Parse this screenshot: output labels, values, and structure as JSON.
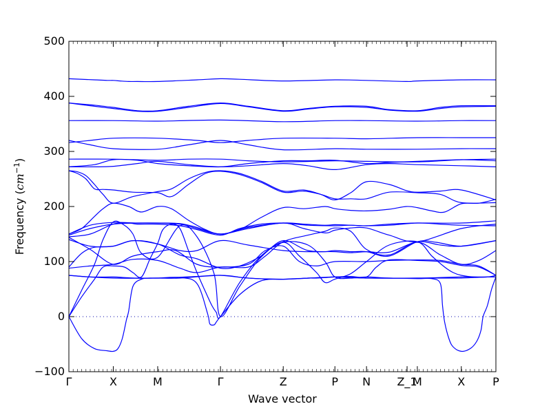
{
  "chart_data": {
    "type": "line",
    "title": "",
    "xlabel": "Wave vector",
    "ylabel_main": "Frequency (",
    "ylabel_math": "cm",
    "ylabel_sup": "−1",
    "ylabel_close": ")",
    "ylim": [
      -100,
      500
    ],
    "yticks": [
      -100,
      0,
      100,
      200,
      300,
      400,
      500
    ],
    "ytick_labels": [
      "−100",
      "0",
      "100",
      "200",
      "300",
      "400",
      "500"
    ],
    "xlim": [
      0,
      1
    ],
    "kpoints": [
      {
        "label": "Γ",
        "x": 0.0
      },
      {
        "label": "X",
        "x": 0.104
      },
      {
        "label": "M",
        "x": 0.208
      },
      {
        "label": "Γ",
        "x": 0.355
      },
      {
        "label": "Z",
        "x": 0.502
      },
      {
        "label": "P",
        "x": 0.623
      },
      {
        "label": "N",
        "x": 0.697
      },
      {
        "label": "Z_1",
        "x": 0.792
      },
      {
        "label": "M",
        "x": 0.816
      },
      {
        "label": "X",
        "x": 0.919
      },
      {
        "label": "P",
        "x": 1.0
      }
    ],
    "zero_line": {
      "y": 0,
      "style": "dotted"
    },
    "line_color": "#0000ff",
    "grid": false,
    "series": [
      {
        "x": [
          0,
          0.06,
          0.09,
          0.104,
          0.12,
          0.14,
          0.16,
          0.208,
          0.3,
          0.355,
          0.4,
          0.502,
          0.623,
          0.697,
          0.792,
          0.816,
          0.919,
          1.0
        ],
        "y": [
          432,
          430,
          429,
          429,
          428,
          427,
          427,
          427,
          430,
          432,
          431,
          428,
          430,
          429,
          427,
          428,
          430,
          430
        ]
      },
      {
        "x": [
          0,
          0.06,
          0.104,
          0.16,
          0.208,
          0.28,
          0.355,
          0.42,
          0.502,
          0.56,
          0.623,
          0.697,
          0.75,
          0.816,
          0.87,
          0.919,
          1.0
        ],
        "y": [
          388,
          384,
          380,
          374,
          374,
          382,
          388,
          382,
          374,
          378,
          382,
          382,
          376,
          374,
          380,
          383,
          383
        ]
      },
      {
        "x": [
          0,
          0.06,
          0.104,
          0.16,
          0.208,
          0.28,
          0.355,
          0.42,
          0.502,
          0.56,
          0.623,
          0.697,
          0.75,
          0.816,
          0.87,
          0.919,
          1.0
        ],
        "y": [
          388,
          382,
          378,
          373,
          373,
          380,
          387,
          381,
          373,
          377,
          381,
          380,
          375,
          373,
          378,
          381,
          382
        ]
      },
      {
        "x": [
          0,
          0.104,
          0.208,
          0.355,
          0.502,
          0.623,
          0.697,
          0.816,
          0.919,
          1.0
        ],
        "y": [
          356,
          356,
          355,
          357,
          354,
          356,
          356,
          355,
          356,
          356
        ]
      },
      {
        "x": [
          0,
          0.05,
          0.104,
          0.208,
          0.3,
          0.355,
          0.42,
          0.502,
          0.623,
          0.697,
          0.816,
          0.919,
          1.0
        ],
        "y": [
          316,
          320,
          324,
          324,
          320,
          316,
          320,
          324,
          324,
          323,
          325,
          325,
          325
        ]
      },
      {
        "x": [
          0,
          0.05,
          0.104,
          0.208,
          0.28,
          0.355,
          0.42,
          0.502,
          0.623,
          0.697,
          0.816,
          0.919,
          1.0
        ],
        "y": [
          320,
          312,
          305,
          304,
          312,
          320,
          312,
          303,
          305,
          304,
          304,
          305,
          305
        ]
      },
      {
        "x": [
          0,
          0.104,
          0.208,
          0.28,
          0.355,
          0.42,
          0.502,
          0.623,
          0.697,
          0.816,
          0.919,
          1.0
        ],
        "y": [
          286,
          286,
          284,
          286,
          286,
          283,
          281,
          283,
          282,
          281,
          285,
          286
        ]
      },
      {
        "x": [
          0,
          0.06,
          0.104,
          0.16,
          0.208,
          0.28,
          0.355,
          0.42,
          0.502,
          0.56,
          0.623,
          0.697,
          0.75,
          0.816,
          0.919,
          1.0
        ],
        "y": [
          272,
          276,
          285,
          284,
          278,
          274,
          272,
          278,
          283,
          283,
          284,
          278,
          280,
          282,
          285,
          283
        ]
      },
      {
        "x": [
          0,
          0.06,
          0.104,
          0.16,
          0.208,
          0.28,
          0.355,
          0.42,
          0.502,
          0.56,
          0.623,
          0.697,
          0.75,
          0.816,
          0.919,
          1.0
        ],
        "y": [
          272,
          272,
          273,
          278,
          282,
          276,
          272,
          274,
          278,
          274,
          267,
          276,
          278,
          276,
          274,
          272
        ]
      },
      {
        "x": [
          0,
          0.02,
          0.04,
          0.06,
          0.08,
          0.104,
          0.15,
          0.208,
          0.24,
          0.28,
          0.32,
          0.355,
          0.4,
          0.45,
          0.502,
          0.55,
          0.59,
          0.623,
          0.66,
          0.697,
          0.75,
          0.79,
          0.816,
          0.87,
          0.919,
          1.0
        ],
        "y": [
          265,
          263,
          256,
          240,
          222,
          206,
          218,
          227,
          232,
          250,
          262,
          265,
          260,
          246,
          228,
          230,
          222,
          212,
          225,
          245,
          240,
          229,
          226,
          228,
          230,
          212
        ]
      },
      {
        "x": [
          0,
          0.02,
          0.04,
          0.06,
          0.08,
          0.104,
          0.15,
          0.208,
          0.24,
          0.28,
          0.32,
          0.355,
          0.4,
          0.45,
          0.502,
          0.55,
          0.59,
          0.623,
          0.66,
          0.697,
          0.75,
          0.816,
          0.87,
          0.919,
          1.0
        ],
        "y": [
          265,
          260,
          250,
          232,
          231,
          230,
          226,
          225,
          218,
          240,
          260,
          264,
          258,
          244,
          226,
          228,
          222,
          214,
          214,
          214,
          226,
          225,
          222,
          207,
          207
        ]
      },
      {
        "x": [
          0,
          0.03,
          0.06,
          0.08,
          0.104,
          0.14,
          0.17,
          0.208,
          0.24,
          0.28,
          0.32,
          0.355,
          0.4,
          0.45,
          0.502,
          0.55,
          0.6,
          0.623,
          0.66,
          0.697,
          0.75,
          0.79,
          0.816,
          0.85,
          0.88,
          0.919,
          0.96,
          1.0
        ],
        "y": [
          150,
          160,
          182,
          196,
          206,
          200,
          190,
          200,
          196,
          175,
          158,
          150,
          158,
          180,
          198,
          196,
          200,
          196,
          193,
          192,
          195,
          200,
          198,
          192,
          190,
          205,
          206,
          213
        ]
      },
      {
        "x": [
          0,
          0.05,
          0.104,
          0.16,
          0.208,
          0.26,
          0.3,
          0.355,
          0.42,
          0.502,
          0.55,
          0.6,
          0.623,
          0.66,
          0.697,
          0.75,
          0.816,
          0.919,
          1.0
        ],
        "y": [
          148,
          160,
          168,
          170,
          170,
          168,
          160,
          150,
          160,
          170,
          160,
          152,
          157,
          161,
          161,
          148,
          136,
          160,
          168
        ]
      },
      {
        "x": [
          0,
          0.05,
          0.104,
          0.16,
          0.208,
          0.26,
          0.3,
          0.355,
          0.42,
          0.502,
          0.55,
          0.6,
          0.623,
          0.66,
          0.697,
          0.75,
          0.816,
          0.919,
          1.0
        ],
        "y": [
          150,
          166,
          171,
          170,
          170,
          169,
          162,
          150,
          162,
          170,
          168,
          166,
          167,
          166,
          165,
          168,
          170,
          170,
          174
        ]
      },
      {
        "x": [
          0,
          0.05,
          0.104,
          0.14,
          0.16,
          0.208,
          0.26,
          0.3,
          0.355,
          0.4,
          0.45,
          0.502,
          0.56,
          0.623,
          0.66,
          0.697,
          0.75,
          0.816,
          0.87,
          0.919,
          1.0
        ],
        "y": [
          145,
          150,
          168,
          170,
          168,
          168,
          165,
          158,
          148,
          160,
          168,
          170,
          166,
          165,
          166,
          165,
          166,
          170,
          168,
          166,
          165
        ]
      },
      {
        "x": [
          0,
          0.05,
          0.104,
          0.15,
          0.208,
          0.26,
          0.3,
          0.355,
          0.4,
          0.45,
          0.502,
          0.56,
          0.623,
          0.66,
          0.697,
          0.75,
          0.816,
          0.87,
          0.919,
          1.0
        ],
        "y": [
          140,
          128,
          128,
          138,
          132,
          112,
          105,
          88,
          92,
          110,
          138,
          120,
          118,
          116,
          118,
          117,
          136,
          130,
          128,
          138
        ]
      },
      {
        "x": [
          0,
          0.03,
          0.06,
          0.104,
          0.15,
          0.208,
          0.26,
          0.3,
          0.355,
          0.42,
          0.502,
          0.56,
          0.6,
          0.623,
          0.66,
          0.697,
          0.75,
          0.816,
          0.86,
          0.919,
          1.0
        ],
        "y": [
          90,
          115,
          126,
          128,
          138,
          132,
          120,
          120,
          138,
          130,
          120,
          118,
          118,
          120,
          118,
          118,
          110,
          136,
          135,
          128,
          138
        ]
      },
      {
        "x": [
          0,
          0.05,
          0.104,
          0.15,
          0.208,
          0.26,
          0.3,
          0.355,
          0.42,
          0.46,
          0.502,
          0.56,
          0.6,
          0.623,
          0.66,
          0.697,
          0.75,
          0.816,
          0.87,
          0.919,
          0.96,
          1.0
        ],
        "y": [
          88,
          92,
          95,
          104,
          102,
          88,
          80,
          90,
          90,
          110,
          136,
          148,
          155,
          161,
          155,
          122,
          112,
          135,
          112,
          95,
          102,
          120
        ]
      },
      {
        "x": [
          0,
          0.05,
          0.104,
          0.15,
          0.208,
          0.25,
          0.3,
          0.355,
          0.42,
          0.46,
          0.502,
          0.54,
          0.58,
          0.623,
          0.697,
          0.75,
          0.816,
          0.87,
          0.919,
          0.96,
          1.0
        ],
        "y": [
          144,
          122,
          95,
          110,
          118,
          120,
          95,
          90,
          95,
          120,
          128,
          100,
          92,
          100,
          100,
          102,
          103,
          102,
          95,
          92,
          75
        ]
      },
      {
        "x": [
          0,
          0.05,
          0.104,
          0.13,
          0.16,
          0.208,
          0.26,
          0.355,
          0.42,
          0.502,
          0.56,
          0.58,
          0.623,
          0.66,
          0.697,
          0.72,
          0.75,
          0.816,
          0.87,
          0.919,
          0.96,
          1.0
        ],
        "y": [
          75,
          72,
          72,
          71,
          70,
          70,
          70,
          75,
          70,
          68,
          70,
          70,
          72,
          73,
          72,
          90,
          103,
          102,
          100,
          93,
          90,
          75
        ]
      },
      {
        "x": [
          0,
          0.05,
          0.104,
          0.208,
          0.3,
          0.355,
          0.42,
          0.502,
          0.623,
          0.697,
          0.816,
          0.919,
          1.0
        ],
        "y": [
          75,
          72,
          70,
          70,
          73,
          75,
          70,
          68,
          72,
          70,
          70,
          72,
          72
        ]
      },
      {
        "x": [
          0,
          0.03,
          0.06,
          0.08,
          0.104,
          0.13,
          0.15,
          0.17,
          0.208,
          0.26,
          0.3,
          0.34,
          0.355,
          0.4,
          0.45,
          0.502,
          0.54,
          0.58,
          0.6,
          0.623,
          0.66,
          0.697,
          0.75,
          0.816,
          0.85,
          0.88,
          0.9,
          0.919,
          0.95,
          0.98,
          1.0
        ],
        "y": [
          0,
          48,
          95,
          140,
          172,
          166,
          150,
          115,
          108,
          165,
          145,
          78,
          0,
          55,
          108,
          135,
          110,
          80,
          62,
          68,
          78,
          100,
          130,
          136,
          110,
          90,
          80,
          75,
          72,
          72,
          75
        ]
      },
      {
        "x": [
          0,
          0.03,
          0.06,
          0.08,
          0.104,
          0.13,
          0.15,
          0.17,
          0.19,
          0.208,
          0.22,
          0.24,
          0.26,
          0.28,
          0.3,
          0.32,
          0.335,
          0.345,
          0.355,
          0.4,
          0.45,
          0.502,
          0.56,
          0.6,
          0.623,
          0.66,
          0.697,
          0.75,
          0.816,
          0.86,
          0.9,
          0.919,
          0.95,
          0.98,
          1.0
        ],
        "y": [
          0,
          36,
          68,
          90,
          92,
          90,
          80,
          72,
          105,
          133,
          158,
          168,
          160,
          120,
          80,
          45,
          20,
          8,
          0,
          62,
          110,
          135,
          130,
          100,
          72,
          70,
          72,
          70,
          70,
          70,
          70,
          70,
          71,
          72,
          72
        ]
      },
      {
        "x": [
          0,
          0.03,
          0.06,
          0.09,
          0.104,
          0.115,
          0.125,
          0.135,
          0.14,
          0.15,
          0.17,
          0.19,
          0.208,
          0.26,
          0.3,
          0.325,
          0.33,
          0.34,
          0.345,
          0.355,
          0.4,
          0.45,
          0.502,
          0.56,
          0.6,
          0.623,
          0.697,
          0.75,
          0.816,
          0.85,
          0.87,
          0.875,
          0.88,
          0.89,
          0.9,
          0.919,
          0.94,
          0.955,
          0.965,
          0.97,
          0.98,
          0.99,
          1.0
        ],
        "y": [
          0,
          -40,
          -58,
          -62,
          -63,
          -58,
          -40,
          -5,
          10,
          55,
          68,
          70,
          70,
          71,
          60,
          5,
          -13,
          -15,
          -10,
          0,
          40,
          65,
          68,
          70,
          71,
          72,
          70,
          70,
          69,
          69,
          60,
          20,
          -10,
          -40,
          -55,
          -63,
          -58,
          -45,
          -25,
          0,
          20,
          50,
          72
        ]
      }
    ]
  }
}
